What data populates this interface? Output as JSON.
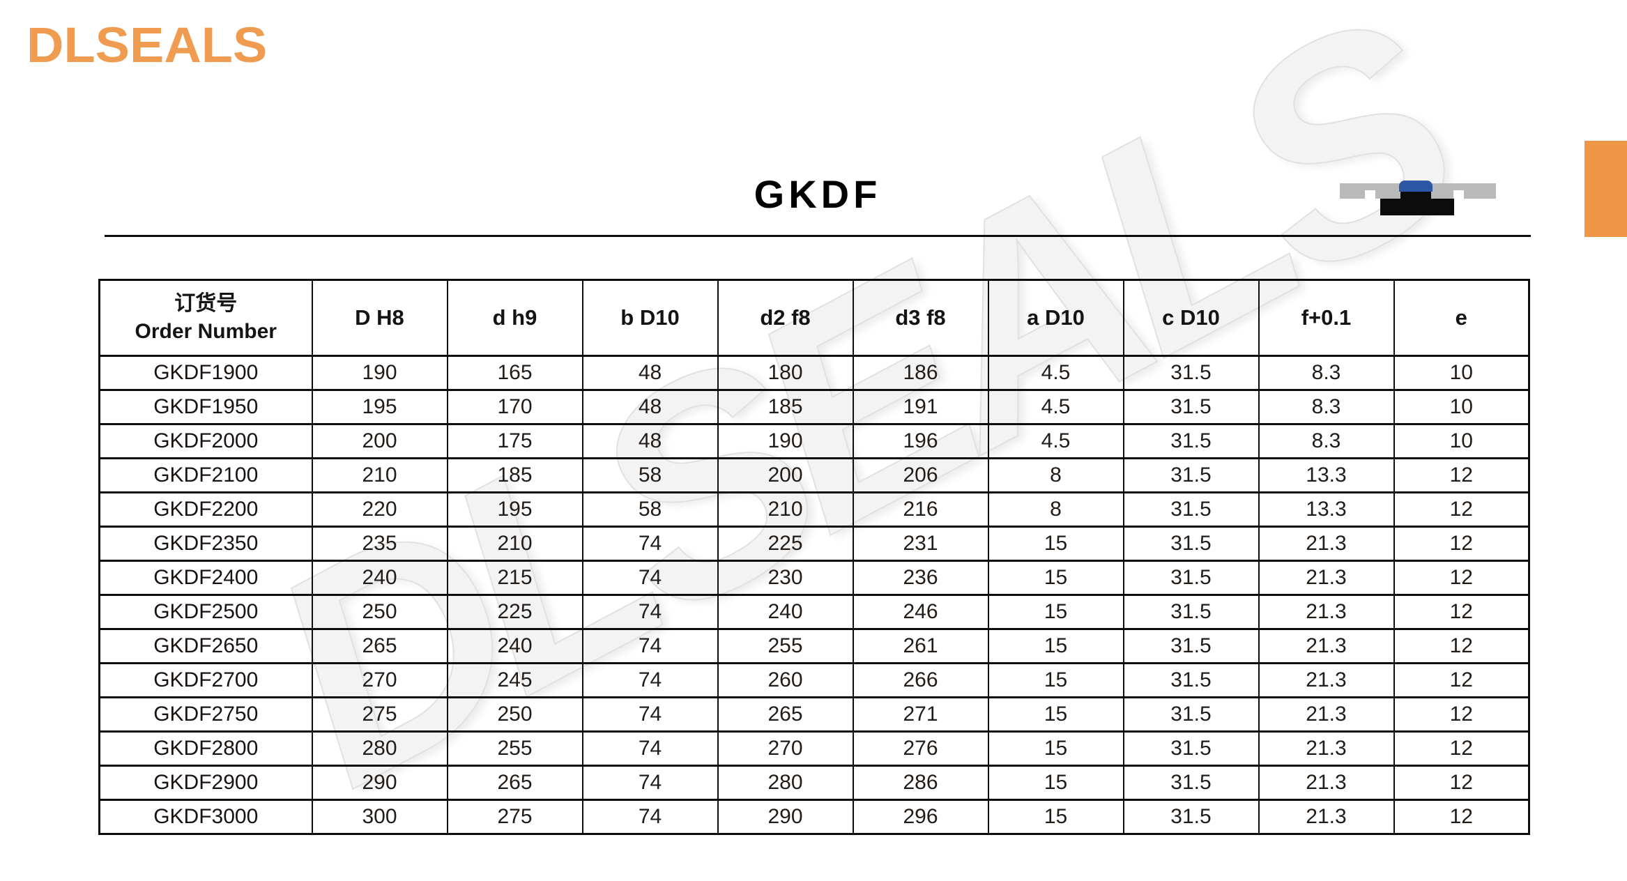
{
  "brand": {
    "logo_text": "DLSEALS"
  },
  "watermark": {
    "text": "DLSEALS"
  },
  "header": {
    "title": "GKDF"
  },
  "icons": {
    "seal_diagram": "seal-cross-section"
  },
  "colors": {
    "accent_orange": "#EE9546",
    "logo_orange": "#F09C50",
    "diagram_blue": "#2b57a5",
    "diagram_gray": "#b9b9b9",
    "border_black": "#0d0d0d",
    "watermark_gray": "#f3f3f3"
  },
  "table": {
    "order_header": {
      "zh": "订货号",
      "en": "Order Number"
    },
    "columns": [
      "D H8",
      "d h9",
      "b D10",
      "d2 f8",
      "d3 f8",
      "a D10",
      "c D10",
      "f+0.1",
      "e"
    ],
    "rows": [
      {
        "order": "GKDF1900",
        "values": [
          "190",
          "165",
          "48",
          "180",
          "186",
          "4.5",
          "31.5",
          "8.3",
          "10"
        ]
      },
      {
        "order": "GKDF1950",
        "values": [
          "195",
          "170",
          "48",
          "185",
          "191",
          "4.5",
          "31.5",
          "8.3",
          "10"
        ]
      },
      {
        "order": "GKDF2000",
        "values": [
          "200",
          "175",
          "48",
          "190",
          "196",
          "4.5",
          "31.5",
          "8.3",
          "10"
        ]
      },
      {
        "order": "GKDF2100",
        "values": [
          "210",
          "185",
          "58",
          "200",
          "206",
          "8",
          "31.5",
          "13.3",
          "12"
        ]
      },
      {
        "order": "GKDF2200",
        "values": [
          "220",
          "195",
          "58",
          "210",
          "216",
          "8",
          "31.5",
          "13.3",
          "12"
        ]
      },
      {
        "order": "GKDF2350",
        "values": [
          "235",
          "210",
          "74",
          "225",
          "231",
          "15",
          "31.5",
          "21.3",
          "12"
        ]
      },
      {
        "order": "GKDF2400",
        "values": [
          "240",
          "215",
          "74",
          "230",
          "236",
          "15",
          "31.5",
          "21.3",
          "12"
        ]
      },
      {
        "order": "GKDF2500",
        "values": [
          "250",
          "225",
          "74",
          "240",
          "246",
          "15",
          "31.5",
          "21.3",
          "12"
        ]
      },
      {
        "order": "GKDF2650",
        "values": [
          "265",
          "240",
          "74",
          "255",
          "261",
          "15",
          "31.5",
          "21.3",
          "12"
        ]
      },
      {
        "order": "GKDF2700",
        "values": [
          "270",
          "245",
          "74",
          "260",
          "266",
          "15",
          "31.5",
          "21.3",
          "12"
        ]
      },
      {
        "order": "GKDF2750",
        "values": [
          "275",
          "250",
          "74",
          "265",
          "271",
          "15",
          "31.5",
          "21.3",
          "12"
        ]
      },
      {
        "order": "GKDF2800",
        "values": [
          "280",
          "255",
          "74",
          "270",
          "276",
          "15",
          "31.5",
          "21.3",
          "12"
        ]
      },
      {
        "order": "GKDF2900",
        "values": [
          "290",
          "265",
          "74",
          "280",
          "286",
          "15",
          "31.5",
          "21.3",
          "12"
        ]
      },
      {
        "order": "GKDF3000",
        "values": [
          "300",
          "275",
          "74",
          "290",
          "296",
          "15",
          "31.5",
          "21.3",
          "12"
        ]
      }
    ]
  }
}
